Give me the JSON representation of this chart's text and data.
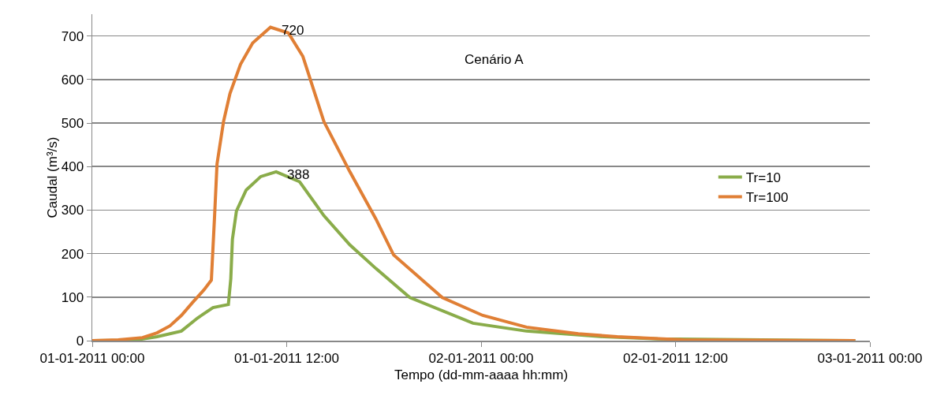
{
  "chart_data": {
    "type": "line",
    "xlabel": "Tempo (dd-mm-aaaa hh:mm)",
    "ylabel": "Caudal (m³/s)",
    "annotations": [
      "Cenário A",
      {
        "text": "720",
        "x": "2011-01-01T11:00",
        "y": 720
      },
      {
        "text": "388",
        "x": "2011-01-01T11:21",
        "y": 388
      }
    ],
    "xlim": [
      "2011-01-01T00:00",
      "2011-01-03T00:00"
    ],
    "xticks": [
      {
        "value": "2011-01-01T00:00",
        "label": "01-01-2011 00:00"
      },
      {
        "value": "2011-01-01T12:00",
        "label": "01-01-2011 12:00"
      },
      {
        "value": "2011-01-02T00:00",
        "label": "02-01-2011 00:00"
      },
      {
        "value": "2011-01-02T12:00",
        "label": "02-01-2011 12:00"
      },
      {
        "value": "2011-01-03T00:00",
        "label": "03-01-2011 00:00"
      }
    ],
    "ylim": [
      0,
      750
    ],
    "yticks": [
      0,
      100,
      200,
      300,
      400,
      500,
      600,
      700
    ],
    "grid": "y",
    "legend": "right",
    "marker": "none",
    "line_style": "solid",
    "series": [
      {
        "name": "Tr=10",
        "color": "#8aac4a",
        "x": [
          "2011-01-01T00:00",
          "2011-01-01T02:36",
          "2011-01-01T04:00",
          "2011-01-01T05:30",
          "2011-01-01T06:30",
          "2011-01-01T07:27",
          "2011-01-01T08:24",
          "2011-01-01T08:33",
          "2011-01-01T08:39",
          "2011-01-01T08:54",
          "2011-01-01T09:30",
          "2011-01-01T10:24",
          "2011-01-01T11:21",
          "2011-01-01T12:48",
          "2011-01-01T14:18",
          "2011-01-01T15:54",
          "2011-01-01T17:30",
          "2011-01-01T19:36",
          "2011-01-01T23:30",
          "2011-01-02T02:48",
          "2011-01-02T07:36",
          "2011-01-02T10:54",
          "2011-01-02T23:06"
        ],
        "values": [
          0,
          1,
          9,
          22,
          52,
          76,
          83,
          142,
          233,
          298,
          346,
          377,
          388,
          365,
          287,
          220,
          166,
          99,
          40,
          22,
          9,
          4,
          0
        ]
      },
      {
        "name": "Tr=100",
        "color": "#e07f35",
        "x": [
          "2011-01-01T00:00",
          "2011-01-01T01:36",
          "2011-01-01T03:06",
          "2011-01-01T04:00",
          "2011-01-01T04:48",
          "2011-01-01T05:30",
          "2011-01-01T06:12",
          "2011-01-01T06:54",
          "2011-01-01T07:21",
          "2011-01-01T07:33",
          "2011-01-01T07:42",
          "2011-01-01T08:06",
          "2011-01-01T08:30",
          "2011-01-01T09:09",
          "2011-01-01T09:54",
          "2011-01-01T11:00",
          "2011-01-01T12:06",
          "2011-01-01T13:00",
          "2011-01-01T14:18",
          "2011-01-01T15:54",
          "2011-01-01T17:30",
          "2011-01-01T18:36",
          "2011-01-01T21:36",
          "2011-01-02T00:06",
          "2011-01-02T02:48",
          "2011-01-02T06:00",
          "2011-01-02T08:24",
          "2011-01-02T12:30",
          "2011-01-02T23:06"
        ],
        "values": [
          0,
          2,
          7,
          18,
          34,
          58,
          88,
          117,
          139,
          287,
          406,
          503,
          568,
          635,
          684,
          720,
          707,
          653,
          503,
          388,
          280,
          197,
          99,
          58,
          31,
          16,
          9,
          2,
          0
        ]
      }
    ]
  }
}
